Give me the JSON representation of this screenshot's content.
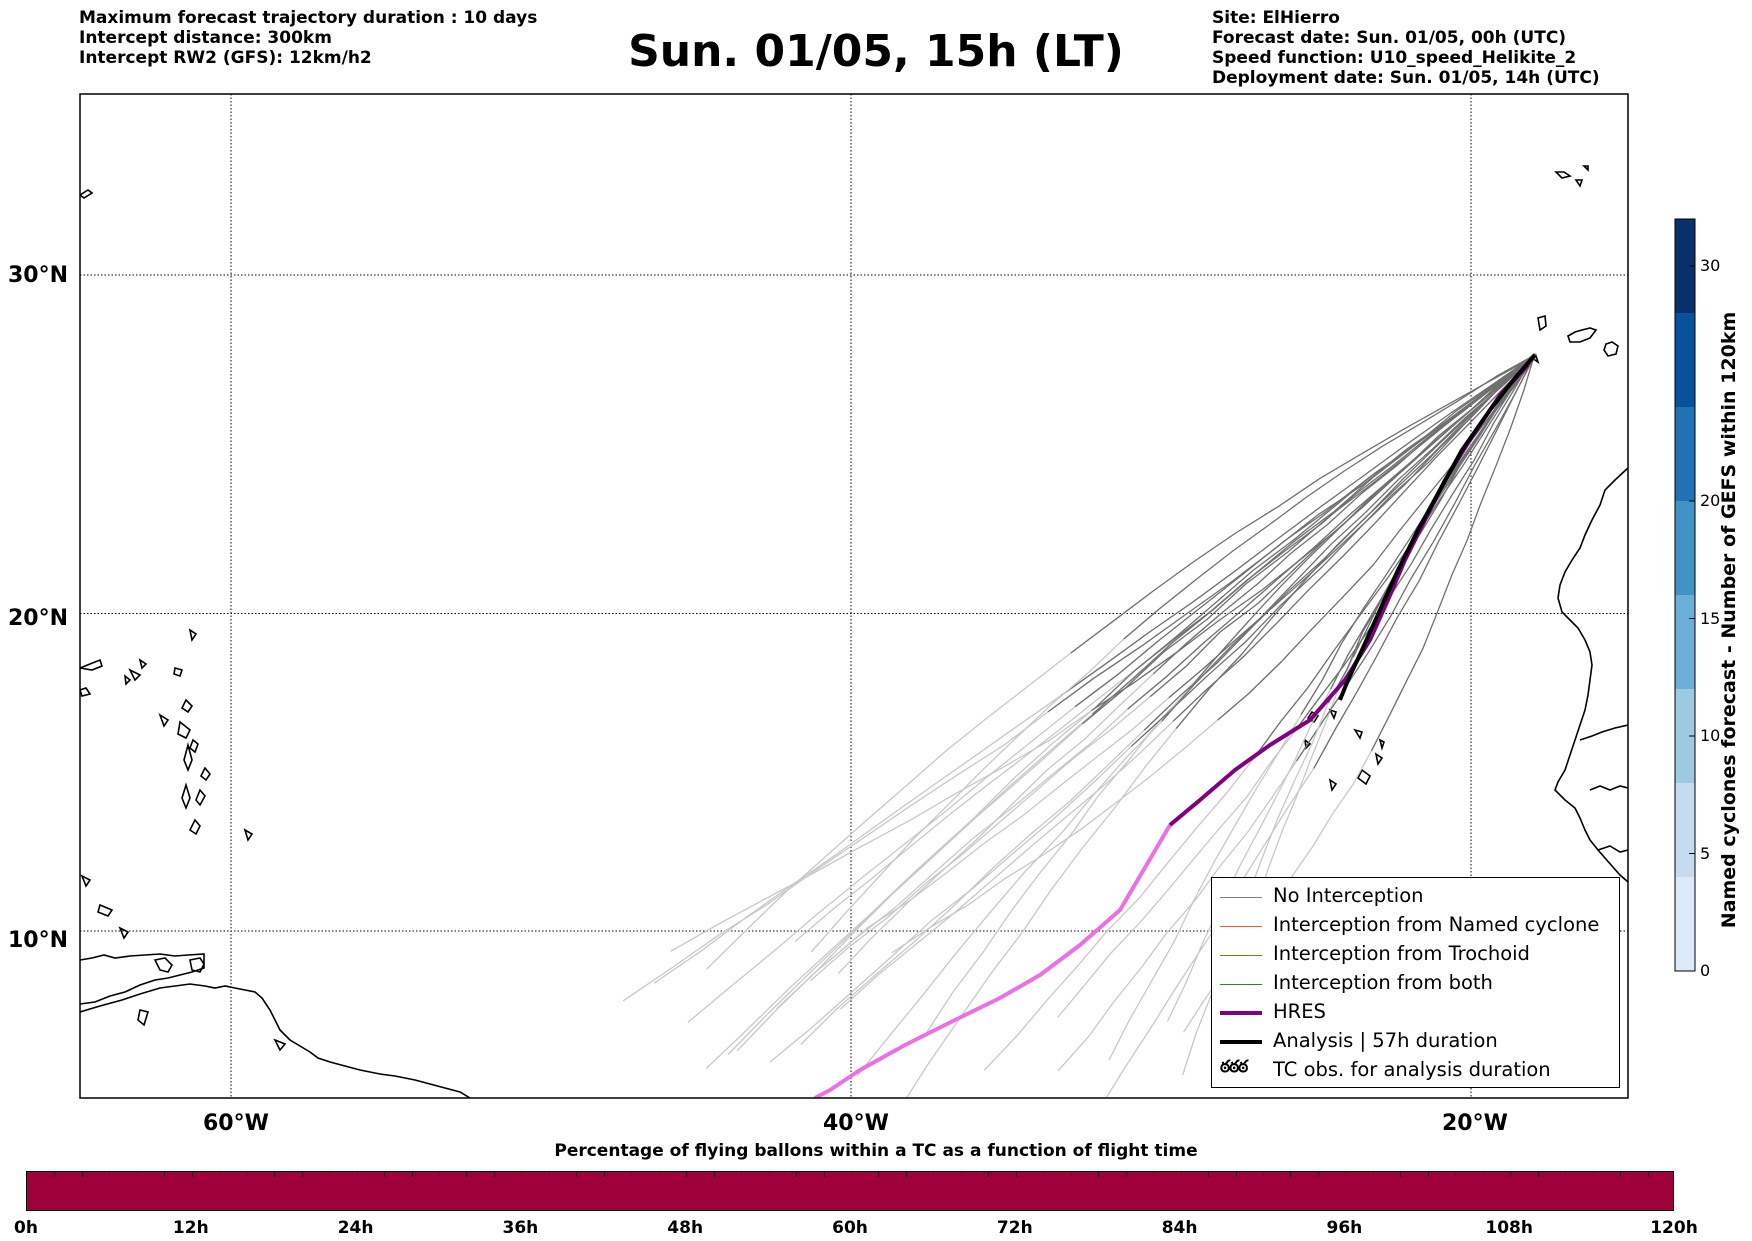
{
  "header": {
    "left": [
      "Maximum forecast trajectory duration : 10 days",
      "Intercept distance: 300km",
      "Intercept RW2 (GFS):  12km/h2"
    ],
    "title": "Sun. 01/05, 15h (LT)",
    "right": [
      "Site: ElHierro",
      "Forecast date: Sun. 01/05, 00h (UTC)",
      "Speed function: U10_speed_Helikite_2",
      "Deployment date: Sun. 01/05, 14h (UTC)"
    ]
  },
  "map": {
    "lat_labels": [
      "30°N",
      "20°N",
      "10°N"
    ],
    "lon_labels": [
      "60°W",
      "40°W",
      "20°W"
    ],
    "lat_values": [
      30,
      20,
      10
    ],
    "lon_values": [
      -60,
      -40,
      -20
    ]
  },
  "legend": {
    "items": [
      {
        "label": "No Interception",
        "color": "#808080",
        "style": "thin"
      },
      {
        "label": "Interception from Named cyclone",
        "color": "#ff5a1e",
        "style": "thin"
      },
      {
        "label": "Interception from Trochoid",
        "color": "#808000",
        "style": "thin"
      },
      {
        "label": "Interception from both",
        "color": "#228b22",
        "style": "thin"
      },
      {
        "label": "HRES",
        "color": "#800080",
        "style": "thick"
      },
      {
        "label": "Analysis | 57h duration",
        "color": "#000000",
        "style": "thick"
      },
      {
        "label": "TC obs. for analysis duration",
        "color": "#000000",
        "style": "symbol",
        "symbol": "ఠఠఠ"
      }
    ]
  },
  "colorbar": {
    "title": "Named cyclones forecast - Number of GEFS within 120km",
    "ticks": [
      "30",
      "20",
      "15",
      "10",
      "5",
      "0"
    ],
    "tick_values": [
      30,
      20,
      15,
      10,
      5,
      0
    ],
    "max": 32,
    "colors": [
      "#dce9f6",
      "#c6dbef",
      "#9ecae1",
      "#6baed6",
      "#4292c6",
      "#2171b5",
      "#08519c",
      "#08306b"
    ]
  },
  "flight_bar": {
    "title": "Percentage of flying ballons within a TC as a function of flight time",
    "ticks": [
      "0h",
      "12h",
      "24h",
      "36h",
      "48h",
      "60h",
      "72h",
      "84h",
      "96h",
      "108h",
      "120h"
    ],
    "color": "#9e003a"
  },
  "colors": {
    "hres": "#800080",
    "hres_light": "#ee6ee6",
    "analysis": "#000000",
    "ensemble_dark": "#707070",
    "ensemble_light": "#c8c8c8"
  }
}
